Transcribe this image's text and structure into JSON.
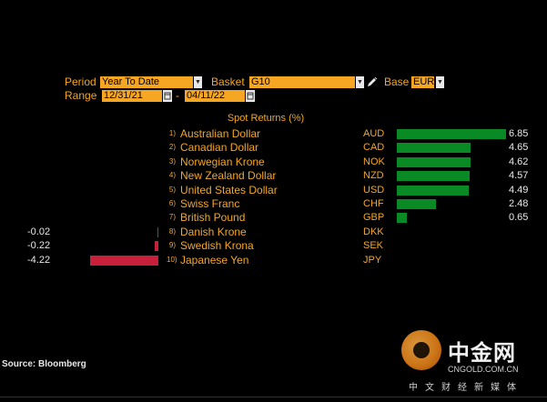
{
  "controls": {
    "period_label": "Period",
    "period_value": "Year To Date",
    "basket_label": "Basket",
    "basket_value": "G10",
    "base_label": "Base",
    "base_value": "EUR",
    "range_label": "Range",
    "start_date": "12/31/21",
    "end_date": "04/11/22",
    "range_separator": "-"
  },
  "chart_data": {
    "type": "bar",
    "title": "Spot Returns (%)",
    "categories": [
      "Australian Dollar",
      "Canadian Dollar",
      "Norwegian Krone",
      "New Zealand Dollar",
      "United States Dollar",
      "Swiss Franc",
      "British Pound",
      "Danish Krone",
      "Swedish Krona",
      "Japanese Yen"
    ],
    "codes": [
      "AUD",
      "CAD",
      "NOK",
      "NZD",
      "USD",
      "CHF",
      "GBP",
      "DKK",
      "SEK",
      "JPY"
    ],
    "ranks": [
      "1)",
      "2)",
      "3)",
      "4)",
      "5)",
      "6)",
      "7)",
      "8)",
      "9)",
      "10)"
    ],
    "values": [
      6.85,
      4.65,
      4.62,
      4.57,
      4.49,
      2.48,
      0.65,
      -0.02,
      -0.22,
      -4.22
    ],
    "colors": {
      "positive": "#0a8a25",
      "negative": "#c8203a"
    }
  },
  "footer": {
    "source": "Source: Bloomberg"
  },
  "watermark": {
    "title": "中金网",
    "url": "CNGOLD.COM.CN",
    "subtitle": "中文财经新媒体"
  },
  "icons": {
    "dropdown": "chevron-down-icon",
    "edit": "pencil-icon",
    "calendar": "calendar-icon"
  }
}
